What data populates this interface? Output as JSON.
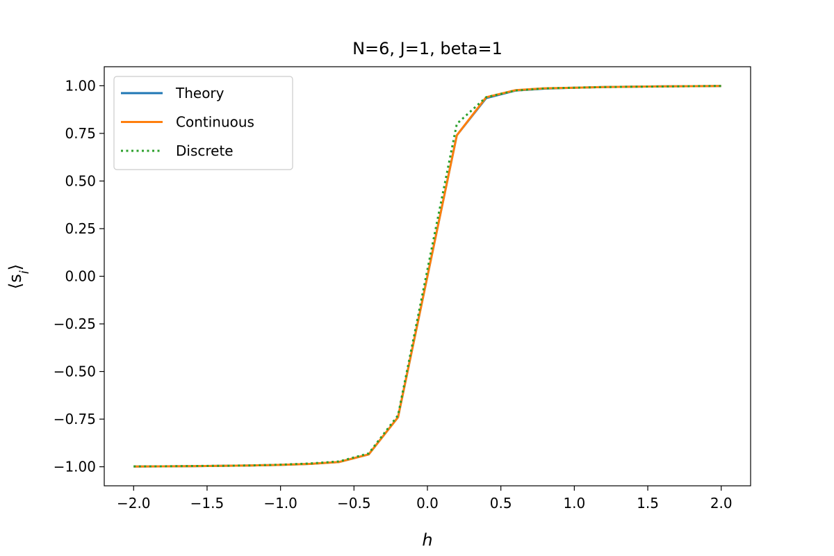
{
  "chart_data": {
    "type": "line",
    "title": "N=6, J=1, beta=1",
    "xlabel": "h",
    "ylabel": "⟨s",
    "ylabel_sub": "i",
    "ylabel_close": "⟩",
    "xlim": [
      -2.2,
      2.2
    ],
    "ylim": [
      -1.1,
      1.1
    ],
    "x_ticks": [
      -2.0,
      -1.5,
      -1.0,
      -0.5,
      0.0,
      0.5,
      1.0,
      1.5,
      2.0
    ],
    "x_tick_labels": [
      "−2.0",
      "−1.5",
      "−1.0",
      "−0.5",
      "0.0",
      "0.5",
      "1.0",
      "1.5",
      "2.0"
    ],
    "y_ticks": [
      1.0,
      0.75,
      0.5,
      0.25,
      0.0,
      -0.25,
      -0.5,
      -0.75,
      -1.0
    ],
    "y_tick_labels": [
      "1.00",
      "0.75",
      "0.50",
      "0.25",
      "0.00",
      "−0.25",
      "−0.50",
      "−0.75",
      "−1.00"
    ],
    "grid": false,
    "legend_position": "upper-left",
    "series": [
      {
        "name": "Theory",
        "color": "#1f77b4",
        "style": "solid",
        "x": [
          -2.0,
          -1.8,
          -1.6,
          -1.4,
          -1.2,
          -1.0,
          -0.8,
          -0.6,
          -0.4,
          -0.2,
          0.2,
          0.4,
          0.6,
          0.8,
          1.0,
          1.2,
          1.4,
          1.6,
          1.8,
          2.0
        ],
        "y": [
          -0.999,
          -0.998,
          -0.997,
          -0.995,
          -0.993,
          -0.99,
          -0.985,
          -0.975,
          -0.935,
          -0.74,
          0.74,
          0.935,
          0.975,
          0.985,
          0.99,
          0.993,
          0.995,
          0.997,
          0.998,
          0.999
        ]
      },
      {
        "name": "Continuous",
        "color": "#ff7f0e",
        "style": "solid",
        "x": [
          -2.0,
          -1.8,
          -1.6,
          -1.4,
          -1.2,
          -1.0,
          -0.8,
          -0.6,
          -0.4,
          -0.2,
          0.2,
          0.4,
          0.6,
          0.8,
          1.0,
          1.2,
          1.4,
          1.6,
          1.8,
          2.0
        ],
        "y": [
          -0.999,
          -0.998,
          -0.997,
          -0.995,
          -0.993,
          -0.99,
          -0.985,
          -0.975,
          -0.935,
          -0.74,
          0.74,
          0.94,
          0.977,
          0.987,
          0.99,
          0.993,
          0.995,
          0.997,
          0.998,
          0.999
        ]
      },
      {
        "name": "Discrete",
        "color": "#2ca02c",
        "style": "dotted",
        "x": [
          -2.0,
          -1.8,
          -1.6,
          -1.4,
          -1.2,
          -1.0,
          -0.8,
          -0.6,
          -0.4,
          -0.2,
          0.2,
          0.4,
          0.6,
          0.8,
          1.0,
          1.2,
          1.4,
          1.6,
          1.8,
          2.0
        ],
        "y": [
          -0.998,
          -0.998,
          -0.996,
          -0.995,
          -0.993,
          -0.989,
          -0.983,
          -0.972,
          -0.93,
          -0.73,
          0.8,
          0.94,
          0.975,
          0.986,
          0.99,
          0.993,
          0.995,
          0.996,
          0.998,
          0.999
        ]
      }
    ]
  }
}
